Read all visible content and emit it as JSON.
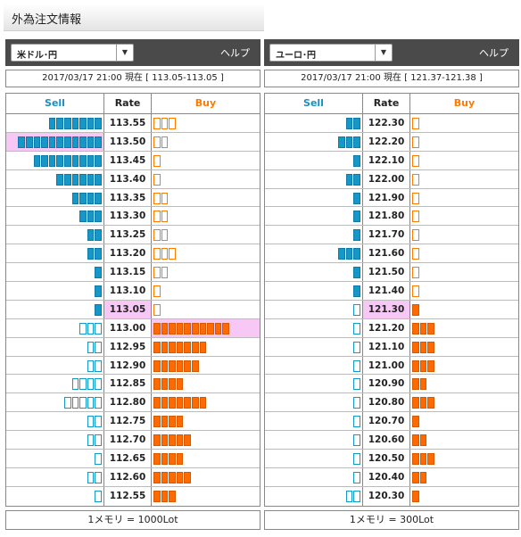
{
  "page_title": "外為注文情報",
  "labels": {
    "sell": "Sell",
    "rate": "Rate",
    "buy": "Buy"
  },
  "colors": {
    "sell": "#1597c8",
    "buy": "#ff6a00",
    "highlight": "#f7c8f5",
    "header": "#4a4a4a"
  },
  "panels": [
    {
      "pair": "米ドル･円",
      "help": "ヘルプ",
      "datetime": "2017/03/17  21:00 現在 [ 113.05-113.05 ]",
      "footer": "1メモリ = 1000Lot",
      "current_rate": "113.05",
      "rows": [
        {
          "rate": "113.55",
          "sell": 7,
          "sell_hollow": false,
          "buy": 3,
          "buy_hollow": true,
          "hl": ""
        },
        {
          "rate": "113.50",
          "sell": 11,
          "sell_hollow": false,
          "buy": 2,
          "buy_hollow": true,
          "hl": "sell"
        },
        {
          "rate": "113.45",
          "sell": 9,
          "sell_hollow": false,
          "buy": 1,
          "buy_hollow": true,
          "hl": ""
        },
        {
          "rate": "113.40",
          "sell": 6,
          "sell_hollow": false,
          "buy": 1,
          "buy_hollow": true,
          "hl": ""
        },
        {
          "rate": "113.35",
          "sell": 4,
          "sell_hollow": false,
          "buy": 2,
          "buy_hollow": true,
          "hl": ""
        },
        {
          "rate": "113.30",
          "sell": 3,
          "sell_hollow": false,
          "buy": 2,
          "buy_hollow": true,
          "hl": ""
        },
        {
          "rate": "113.25",
          "sell": 2,
          "sell_hollow": false,
          "buy": 2,
          "buy_hollow": true,
          "hl": ""
        },
        {
          "rate": "113.20",
          "sell": 2,
          "sell_hollow": false,
          "buy": 3,
          "buy_hollow": true,
          "hl": ""
        },
        {
          "rate": "113.15",
          "sell": 1,
          "sell_hollow": false,
          "buy": 2,
          "buy_hollow": true,
          "hl": ""
        },
        {
          "rate": "113.10",
          "sell": 1,
          "sell_hollow": false,
          "buy": 1,
          "buy_hollow": true,
          "hl": ""
        },
        {
          "rate": "113.05",
          "sell": 1,
          "sell_hollow": false,
          "buy": 1,
          "buy_hollow": true,
          "hl": ""
        },
        {
          "rate": "113.00",
          "sell": 3,
          "sell_hollow": true,
          "buy": 10,
          "buy_hollow": false,
          "hl": "buy"
        },
        {
          "rate": "112.95",
          "sell": 2,
          "sell_hollow": true,
          "buy": 7,
          "buy_hollow": false,
          "hl": ""
        },
        {
          "rate": "112.90",
          "sell": 2,
          "sell_hollow": true,
          "buy": 6,
          "buy_hollow": false,
          "hl": ""
        },
        {
          "rate": "112.85",
          "sell": 4,
          "sell_hollow": true,
          "buy": 4,
          "buy_hollow": false,
          "hl": ""
        },
        {
          "rate": "112.80",
          "sell": 5,
          "sell_hollow": true,
          "buy": 7,
          "buy_hollow": false,
          "hl": ""
        },
        {
          "rate": "112.75",
          "sell": 2,
          "sell_hollow": true,
          "buy": 4,
          "buy_hollow": false,
          "hl": ""
        },
        {
          "rate": "112.70",
          "sell": 2,
          "sell_hollow": true,
          "buy": 5,
          "buy_hollow": false,
          "hl": ""
        },
        {
          "rate": "112.65",
          "sell": 1,
          "sell_hollow": true,
          "buy": 4,
          "buy_hollow": false,
          "hl": ""
        },
        {
          "rate": "112.60",
          "sell": 2,
          "sell_hollow": true,
          "buy": 5,
          "buy_hollow": false,
          "hl": ""
        },
        {
          "rate": "112.55",
          "sell": 1,
          "sell_hollow": true,
          "buy": 3,
          "buy_hollow": false,
          "hl": ""
        }
      ]
    },
    {
      "pair": "ユーロ･円",
      "help": "ヘルプ",
      "datetime": "2017/03/17  21:00 現在 [ 121.37-121.38 ]",
      "footer": "1メモリ = 300Lot",
      "current_rate": "121.30",
      "rows": [
        {
          "rate": "122.30",
          "sell": 2,
          "sell_hollow": false,
          "buy": 1,
          "buy_hollow": true,
          "hl": ""
        },
        {
          "rate": "122.20",
          "sell": 3,
          "sell_hollow": false,
          "buy": 1,
          "buy_hollow": true,
          "hl": ""
        },
        {
          "rate": "122.10",
          "sell": 1,
          "sell_hollow": false,
          "buy": 1,
          "buy_hollow": true,
          "hl": ""
        },
        {
          "rate": "122.00",
          "sell": 2,
          "sell_hollow": false,
          "buy": 1,
          "buy_hollow": true,
          "hl": ""
        },
        {
          "rate": "121.90",
          "sell": 1,
          "sell_hollow": false,
          "buy": 1,
          "buy_hollow": true,
          "hl": ""
        },
        {
          "rate": "121.80",
          "sell": 1,
          "sell_hollow": false,
          "buy": 1,
          "buy_hollow": true,
          "hl": ""
        },
        {
          "rate": "121.70",
          "sell": 1,
          "sell_hollow": false,
          "buy": 1,
          "buy_hollow": true,
          "hl": ""
        },
        {
          "rate": "121.60",
          "sell": 3,
          "sell_hollow": false,
          "buy": 1,
          "buy_hollow": true,
          "hl": ""
        },
        {
          "rate": "121.50",
          "sell": 1,
          "sell_hollow": false,
          "buy": 1,
          "buy_hollow": true,
          "hl": ""
        },
        {
          "rate": "121.40",
          "sell": 1,
          "sell_hollow": false,
          "buy": 1,
          "buy_hollow": true,
          "hl": ""
        },
        {
          "rate": "121.30",
          "sell": 1,
          "sell_hollow": true,
          "buy": 1,
          "buy_hollow": false,
          "hl": ""
        },
        {
          "rate": "121.20",
          "sell": 1,
          "sell_hollow": true,
          "buy": 3,
          "buy_hollow": false,
          "hl": ""
        },
        {
          "rate": "121.10",
          "sell": 1,
          "sell_hollow": true,
          "buy": 3,
          "buy_hollow": false,
          "hl": ""
        },
        {
          "rate": "121.00",
          "sell": 1,
          "sell_hollow": true,
          "buy": 3,
          "buy_hollow": false,
          "hl": ""
        },
        {
          "rate": "120.90",
          "sell": 1,
          "sell_hollow": true,
          "buy": 2,
          "buy_hollow": false,
          "hl": ""
        },
        {
          "rate": "120.80",
          "sell": 1,
          "sell_hollow": true,
          "buy": 3,
          "buy_hollow": false,
          "hl": ""
        },
        {
          "rate": "120.70",
          "sell": 1,
          "sell_hollow": true,
          "buy": 1,
          "buy_hollow": false,
          "hl": ""
        },
        {
          "rate": "120.60",
          "sell": 1,
          "sell_hollow": true,
          "buy": 2,
          "buy_hollow": false,
          "hl": ""
        },
        {
          "rate": "120.50",
          "sell": 1,
          "sell_hollow": true,
          "buy": 3,
          "buy_hollow": false,
          "hl": ""
        },
        {
          "rate": "120.40",
          "sell": 1,
          "sell_hollow": true,
          "buy": 2,
          "buy_hollow": false,
          "hl": ""
        },
        {
          "rate": "120.30",
          "sell": 2,
          "sell_hollow": true,
          "buy": 1,
          "buy_hollow": false,
          "hl": ""
        }
      ]
    }
  ]
}
